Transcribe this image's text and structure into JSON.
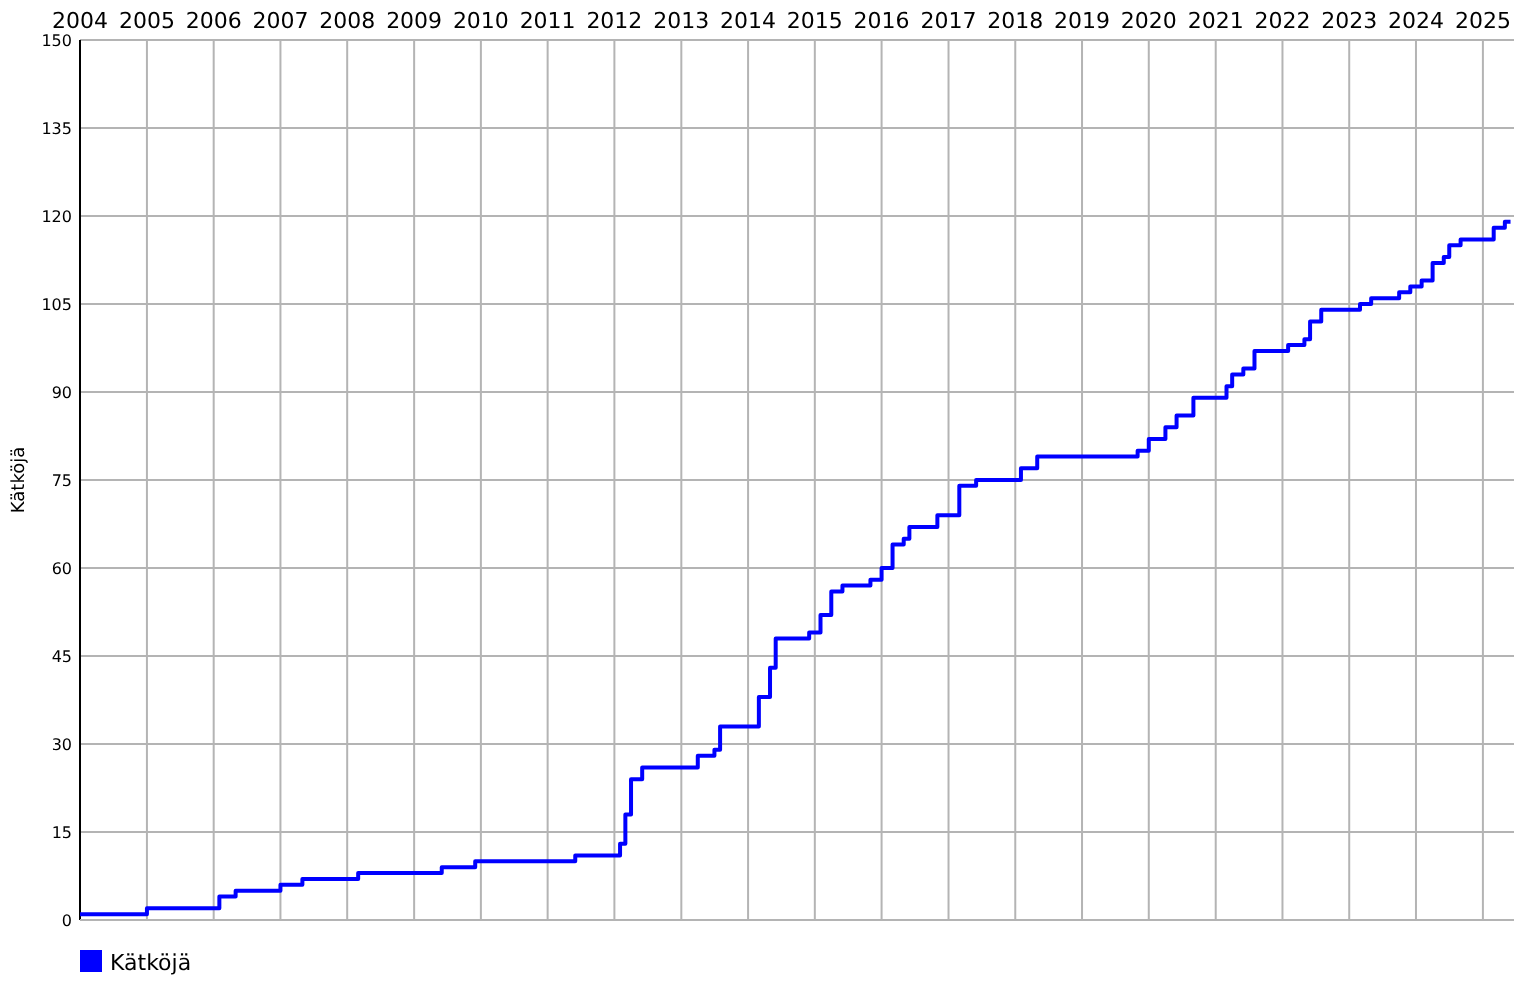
{
  "chart_data": {
    "type": "step",
    "ylabel": "Kätköjä",
    "xlim": [
      "2004-01-01",
      "2025-06-20"
    ],
    "ylim": [
      0,
      150
    ],
    "xticks": [
      "2004",
      "2005",
      "2006",
      "2007",
      "2008",
      "2009",
      "2010",
      "2011",
      "2012",
      "2013",
      "2014",
      "2015",
      "2016",
      "2017",
      "2018",
      "2019",
      "2020",
      "2021",
      "2022",
      "2023",
      "2024",
      "2025"
    ],
    "yticks": [
      0,
      15,
      30,
      45,
      60,
      75,
      90,
      105,
      120,
      135,
      150
    ],
    "grid": true,
    "legend": "bottom left",
    "series": [
      {
        "name": "Kätköjä",
        "color": "#0000ff",
        "x": [
          "2004-01",
          "2005-01",
          "2006-02",
          "2006-05",
          "2007-01",
          "2007-05",
          "2008-03",
          "2009-06",
          "2009-12",
          "2011-06",
          "2012-02",
          "2012-03",
          "2012-04",
          "2012-06",
          "2013-04",
          "2013-07",
          "2013-08",
          "2014-03",
          "2014-05",
          "2014-06",
          "2014-12",
          "2015-02",
          "2015-04",
          "2015-06",
          "2015-11",
          "2016-01",
          "2016-03",
          "2016-05",
          "2016-06",
          "2016-11",
          "2017-03",
          "2017-06",
          "2018-02",
          "2018-05",
          "2019-11",
          "2020-01",
          "2020-04",
          "2020-06",
          "2020-09",
          "2021-03",
          "2021-04",
          "2021-06",
          "2021-08",
          "2022-02",
          "2022-05",
          "2022-06",
          "2022-08",
          "2023-03",
          "2023-05",
          "2023-10",
          "2023-12",
          "2024-02",
          "2024-04",
          "2024-06",
          "2024-07",
          "2024-09",
          "2025-03",
          "2025-05",
          "2025-06"
        ],
        "values": [
          1,
          2,
          4,
          5,
          6,
          7,
          8,
          9,
          10,
          11,
          13,
          18,
          24,
          26,
          28,
          29,
          33,
          38,
          43,
          48,
          49,
          52,
          56,
          57,
          58,
          60,
          64,
          65,
          67,
          69,
          74,
          75,
          77,
          79,
          80,
          82,
          84,
          86,
          89,
          91,
          93,
          94,
          97,
          98,
          99,
          102,
          104,
          105,
          106,
          107,
          108,
          109,
          112,
          113,
          115,
          116,
          118,
          119,
          119
        ]
      }
    ]
  }
}
